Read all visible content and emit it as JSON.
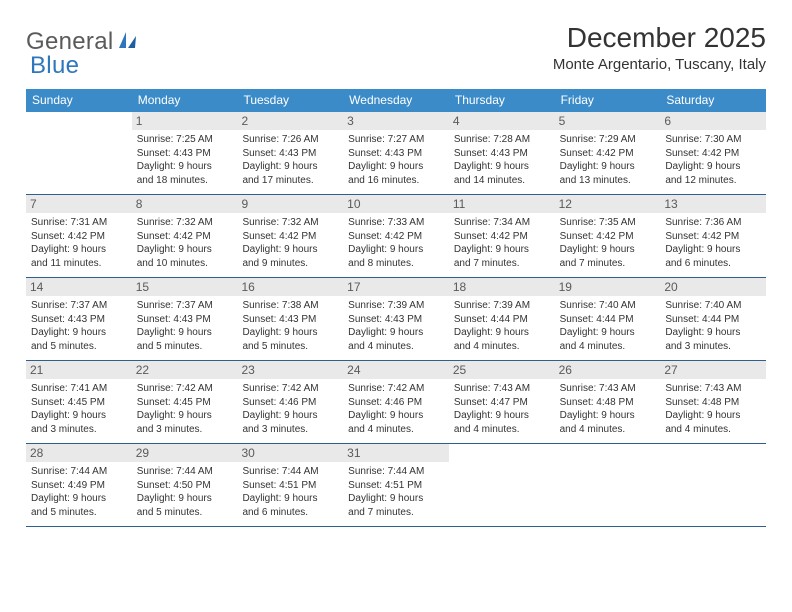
{
  "logo": {
    "text1": "General",
    "text2": "Blue"
  },
  "header": {
    "month_title": "December 2025",
    "location": "Monte Argentario, Tuscany, Italy"
  },
  "colors": {
    "header_bg": "#3b8bc9",
    "header_text": "#ffffff",
    "daynum_bg": "#e9e9e9",
    "daynum_text": "#5a5a5a",
    "rule": "#2f5f8f",
    "body_text": "#333333",
    "logo_gray": "#5a5a5a",
    "logo_blue": "#2f77bb"
  },
  "days_of_week": [
    "Sunday",
    "Monday",
    "Tuesday",
    "Wednesday",
    "Thursday",
    "Friday",
    "Saturday"
  ],
  "weeks": [
    [
      {
        "n": "",
        "sun": "",
        "set": "",
        "dl1": "",
        "dl2": ""
      },
      {
        "n": "1",
        "sun": "Sunrise: 7:25 AM",
        "set": "Sunset: 4:43 PM",
        "dl1": "Daylight: 9 hours",
        "dl2": "and 18 minutes."
      },
      {
        "n": "2",
        "sun": "Sunrise: 7:26 AM",
        "set": "Sunset: 4:43 PM",
        "dl1": "Daylight: 9 hours",
        "dl2": "and 17 minutes."
      },
      {
        "n": "3",
        "sun": "Sunrise: 7:27 AM",
        "set": "Sunset: 4:43 PM",
        "dl1": "Daylight: 9 hours",
        "dl2": "and 16 minutes."
      },
      {
        "n": "4",
        "sun": "Sunrise: 7:28 AM",
        "set": "Sunset: 4:43 PM",
        "dl1": "Daylight: 9 hours",
        "dl2": "and 14 minutes."
      },
      {
        "n": "5",
        "sun": "Sunrise: 7:29 AM",
        "set": "Sunset: 4:42 PM",
        "dl1": "Daylight: 9 hours",
        "dl2": "and 13 minutes."
      },
      {
        "n": "6",
        "sun": "Sunrise: 7:30 AM",
        "set": "Sunset: 4:42 PM",
        "dl1": "Daylight: 9 hours",
        "dl2": "and 12 minutes."
      }
    ],
    [
      {
        "n": "7",
        "sun": "Sunrise: 7:31 AM",
        "set": "Sunset: 4:42 PM",
        "dl1": "Daylight: 9 hours",
        "dl2": "and 11 minutes."
      },
      {
        "n": "8",
        "sun": "Sunrise: 7:32 AM",
        "set": "Sunset: 4:42 PM",
        "dl1": "Daylight: 9 hours",
        "dl2": "and 10 minutes."
      },
      {
        "n": "9",
        "sun": "Sunrise: 7:32 AM",
        "set": "Sunset: 4:42 PM",
        "dl1": "Daylight: 9 hours",
        "dl2": "and 9 minutes."
      },
      {
        "n": "10",
        "sun": "Sunrise: 7:33 AM",
        "set": "Sunset: 4:42 PM",
        "dl1": "Daylight: 9 hours",
        "dl2": "and 8 minutes."
      },
      {
        "n": "11",
        "sun": "Sunrise: 7:34 AM",
        "set": "Sunset: 4:42 PM",
        "dl1": "Daylight: 9 hours",
        "dl2": "and 7 minutes."
      },
      {
        "n": "12",
        "sun": "Sunrise: 7:35 AM",
        "set": "Sunset: 4:42 PM",
        "dl1": "Daylight: 9 hours",
        "dl2": "and 7 minutes."
      },
      {
        "n": "13",
        "sun": "Sunrise: 7:36 AM",
        "set": "Sunset: 4:42 PM",
        "dl1": "Daylight: 9 hours",
        "dl2": "and 6 minutes."
      }
    ],
    [
      {
        "n": "14",
        "sun": "Sunrise: 7:37 AM",
        "set": "Sunset: 4:43 PM",
        "dl1": "Daylight: 9 hours",
        "dl2": "and 5 minutes."
      },
      {
        "n": "15",
        "sun": "Sunrise: 7:37 AM",
        "set": "Sunset: 4:43 PM",
        "dl1": "Daylight: 9 hours",
        "dl2": "and 5 minutes."
      },
      {
        "n": "16",
        "sun": "Sunrise: 7:38 AM",
        "set": "Sunset: 4:43 PM",
        "dl1": "Daylight: 9 hours",
        "dl2": "and 5 minutes."
      },
      {
        "n": "17",
        "sun": "Sunrise: 7:39 AM",
        "set": "Sunset: 4:43 PM",
        "dl1": "Daylight: 9 hours",
        "dl2": "and 4 minutes."
      },
      {
        "n": "18",
        "sun": "Sunrise: 7:39 AM",
        "set": "Sunset: 4:44 PM",
        "dl1": "Daylight: 9 hours",
        "dl2": "and 4 minutes."
      },
      {
        "n": "19",
        "sun": "Sunrise: 7:40 AM",
        "set": "Sunset: 4:44 PM",
        "dl1": "Daylight: 9 hours",
        "dl2": "and 4 minutes."
      },
      {
        "n": "20",
        "sun": "Sunrise: 7:40 AM",
        "set": "Sunset: 4:44 PM",
        "dl1": "Daylight: 9 hours",
        "dl2": "and 3 minutes."
      }
    ],
    [
      {
        "n": "21",
        "sun": "Sunrise: 7:41 AM",
        "set": "Sunset: 4:45 PM",
        "dl1": "Daylight: 9 hours",
        "dl2": "and 3 minutes."
      },
      {
        "n": "22",
        "sun": "Sunrise: 7:42 AM",
        "set": "Sunset: 4:45 PM",
        "dl1": "Daylight: 9 hours",
        "dl2": "and 3 minutes."
      },
      {
        "n": "23",
        "sun": "Sunrise: 7:42 AM",
        "set": "Sunset: 4:46 PM",
        "dl1": "Daylight: 9 hours",
        "dl2": "and 3 minutes."
      },
      {
        "n": "24",
        "sun": "Sunrise: 7:42 AM",
        "set": "Sunset: 4:46 PM",
        "dl1": "Daylight: 9 hours",
        "dl2": "and 4 minutes."
      },
      {
        "n": "25",
        "sun": "Sunrise: 7:43 AM",
        "set": "Sunset: 4:47 PM",
        "dl1": "Daylight: 9 hours",
        "dl2": "and 4 minutes."
      },
      {
        "n": "26",
        "sun": "Sunrise: 7:43 AM",
        "set": "Sunset: 4:48 PM",
        "dl1": "Daylight: 9 hours",
        "dl2": "and 4 minutes."
      },
      {
        "n": "27",
        "sun": "Sunrise: 7:43 AM",
        "set": "Sunset: 4:48 PM",
        "dl1": "Daylight: 9 hours",
        "dl2": "and 4 minutes."
      }
    ],
    [
      {
        "n": "28",
        "sun": "Sunrise: 7:44 AM",
        "set": "Sunset: 4:49 PM",
        "dl1": "Daylight: 9 hours",
        "dl2": "and 5 minutes."
      },
      {
        "n": "29",
        "sun": "Sunrise: 7:44 AM",
        "set": "Sunset: 4:50 PM",
        "dl1": "Daylight: 9 hours",
        "dl2": "and 5 minutes."
      },
      {
        "n": "30",
        "sun": "Sunrise: 7:44 AM",
        "set": "Sunset: 4:51 PM",
        "dl1": "Daylight: 9 hours",
        "dl2": "and 6 minutes."
      },
      {
        "n": "31",
        "sun": "Sunrise: 7:44 AM",
        "set": "Sunset: 4:51 PM",
        "dl1": "Daylight: 9 hours",
        "dl2": "and 7 minutes."
      },
      {
        "n": "",
        "sun": "",
        "set": "",
        "dl1": "",
        "dl2": ""
      },
      {
        "n": "",
        "sun": "",
        "set": "",
        "dl1": "",
        "dl2": ""
      },
      {
        "n": "",
        "sun": "",
        "set": "",
        "dl1": "",
        "dl2": ""
      }
    ]
  ]
}
